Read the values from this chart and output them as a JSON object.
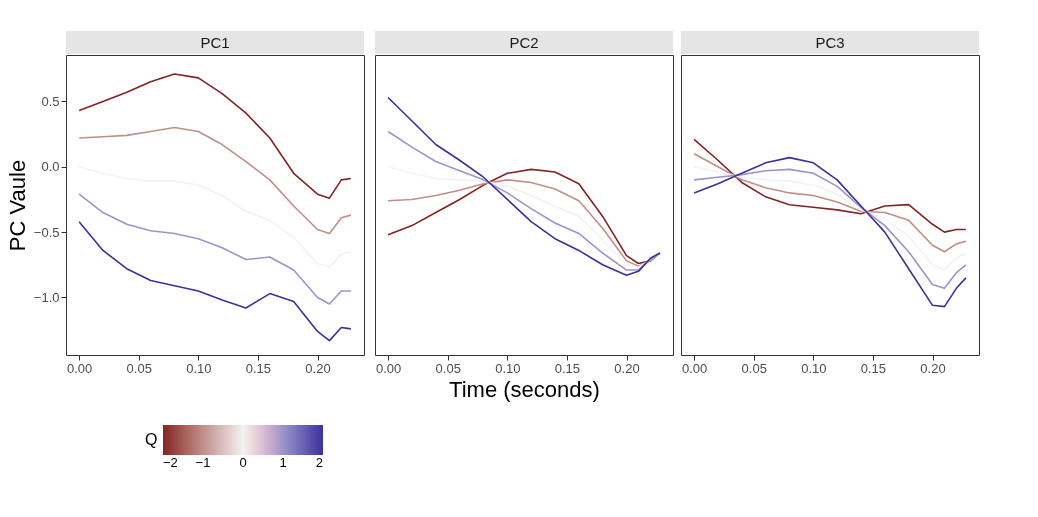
{
  "chart_data": [
    {
      "type": "line",
      "title": "PC1",
      "ylabel": "PC Vaule",
      "x": [
        0,
        0.02,
        0.04,
        0.06,
        0.08,
        0.1,
        0.12,
        0.14,
        0.16,
        0.18,
        0.2,
        0.21,
        0.22,
        0.228
      ],
      "series": [
        {
          "color": "#832424",
          "values": [
            0.43,
            0.5,
            0.57,
            0.65,
            0.71,
            0.68,
            0.56,
            0.41,
            0.22,
            -0.05,
            -0.21,
            -0.24,
            -0.1,
            -0.09
          ]
        },
        {
          "color": "#c08f8a",
          "values": [
            0.22,
            0.23,
            0.24,
            0.27,
            0.3,
            0.27,
            0.17,
            0.04,
            -0.1,
            -0.3,
            -0.48,
            -0.51,
            -0.39,
            -0.37
          ]
        },
        {
          "color": "#f4f2f2",
          "values": [
            0,
            -0.05,
            -0.09,
            -0.11,
            -0.11,
            -0.14,
            -0.22,
            -0.34,
            -0.41,
            -0.54,
            -0.74,
            -0.77,
            -0.67,
            -0.65
          ]
        },
        {
          "color": "#9a95cc",
          "values": [
            -0.21,
            -0.35,
            -0.44,
            -0.49,
            -0.51,
            -0.55,
            -0.62,
            -0.71,
            -0.69,
            -0.79,
            -1.0,
            -1.05,
            -0.95,
            -0.95
          ]
        },
        {
          "color": "#3b319a",
          "values": [
            -0.42,
            -0.64,
            -0.78,
            -0.87,
            -0.91,
            -0.95,
            -1.02,
            -1.08,
            -0.97,
            -1.03,
            -1.26,
            -1.33,
            -1.23,
            -1.24
          ]
        }
      ],
      "xlim": [
        -0.011,
        0.239
      ],
      "ylim": [
        -1.44,
        0.855
      ],
      "xticks": [
        {
          "value": 0,
          "label": "0.00"
        },
        {
          "value": 0.05,
          "label": "0.05"
        },
        {
          "value": 0.1,
          "label": "0.10"
        },
        {
          "value": 0.15,
          "label": "0.15"
        },
        {
          "value": 0.2,
          "label": "0.20"
        }
      ],
      "yticks": [
        {
          "value": -1,
          "label": "−1.0"
        },
        {
          "value": -0.5,
          "label": "−0.5"
        },
        {
          "value": 0,
          "label": "0.0"
        },
        {
          "value": 0.5,
          "label": "0.5"
        }
      ],
      "grid": false
    },
    {
      "type": "line",
      "title": "PC2",
      "xlabel": "Time (seconds)",
      "x": [
        0,
        0.02,
        0.04,
        0.06,
        0.08,
        0.1,
        0.12,
        0.14,
        0.16,
        0.18,
        0.2,
        0.21,
        0.22,
        0.228
      ],
      "series": [
        {
          "color": "#832424",
          "values": [
            -0.52,
            -0.45,
            -0.35,
            -0.25,
            -0.14,
            -0.05,
            -0.02,
            -0.04,
            -0.13,
            -0.38,
            -0.68,
            -0.74,
            -0.72,
            -0.66
          ]
        },
        {
          "color": "#c08f8a",
          "values": [
            -0.26,
            -0.25,
            -0.22,
            -0.18,
            -0.13,
            -0.1,
            -0.12,
            -0.17,
            -0.26,
            -0.47,
            -0.72,
            -0.76,
            -0.72,
            -0.66
          ]
        },
        {
          "color": "#f4f2f2",
          "values": [
            0,
            -0.05,
            -0.09,
            -0.1,
            -0.11,
            -0.15,
            -0.22,
            -0.3,
            -0.38,
            -0.56,
            -0.75,
            -0.77,
            -0.71,
            -0.66
          ]
        },
        {
          "color": "#9a95cc",
          "values": [
            0.27,
            0.15,
            0.04,
            -0.03,
            -0.1,
            -0.2,
            -0.32,
            -0.43,
            -0.51,
            -0.66,
            -0.79,
            -0.79,
            -0.71,
            -0.66
          ]
        },
        {
          "color": "#3b319a",
          "values": [
            0.53,
            0.35,
            0.17,
            0.05,
            -0.08,
            -0.25,
            -0.42,
            -0.55,
            -0.64,
            -0.75,
            -0.83,
            -0.8,
            -0.7,
            -0.66
          ]
        }
      ],
      "xlim": [
        -0.011,
        0.239
      ],
      "ylim": [
        -1.44,
        0.855
      ],
      "xticks": [
        {
          "value": 0,
          "label": "0.00"
        },
        {
          "value": 0.05,
          "label": "0.05"
        },
        {
          "value": 0.1,
          "label": "0.10"
        },
        {
          "value": 0.15,
          "label": "0.15"
        },
        {
          "value": 0.2,
          "label": "0.20"
        }
      ],
      "tick_labels": "x",
      "grid": false,
      "clabel": "Q",
      "clim": [
        -2,
        2
      ],
      "cticks": [
        {
          "value": -2,
          "label": "−2"
        },
        {
          "value": -1,
          "label": "−1"
        },
        {
          "value": 0,
          "label": "0"
        },
        {
          "value": 1,
          "label": "1"
        },
        {
          "value": 2,
          "label": "2"
        }
      ]
    },
    {
      "type": "line",
      "title": "PC3",
      "x": [
        0,
        0.02,
        0.04,
        0.06,
        0.08,
        0.1,
        0.12,
        0.14,
        0.16,
        0.18,
        0.2,
        0.21,
        0.22,
        0.228
      ],
      "series": [
        {
          "color": "#832424",
          "values": [
            0.21,
            0.05,
            -0.12,
            -0.23,
            -0.29,
            -0.31,
            -0.33,
            -0.36,
            -0.3,
            -0.29,
            -0.44,
            -0.5,
            -0.48,
            -0.48
          ]
        },
        {
          "color": "#c08f8a",
          "values": [
            0.1,
            0.0,
            -0.1,
            -0.16,
            -0.2,
            -0.22,
            -0.27,
            -0.34,
            -0.35,
            -0.41,
            -0.6,
            -0.65,
            -0.59,
            -0.57
          ]
        },
        {
          "color": "#f4f2f2",
          "values": [
            0,
            -0.04,
            -0.08,
            -0.1,
            -0.11,
            -0.14,
            -0.21,
            -0.33,
            -0.4,
            -0.53,
            -0.75,
            -0.79,
            -0.7,
            -0.66
          ]
        },
        {
          "color": "#9a95cc",
          "values": [
            -0.1,
            -0.08,
            -0.06,
            -0.03,
            -0.02,
            -0.05,
            -0.15,
            -0.31,
            -0.45,
            -0.65,
            -0.9,
            -0.93,
            -0.81,
            -0.75
          ]
        },
        {
          "color": "#3b319a",
          "values": [
            -0.2,
            -0.13,
            -0.05,
            0.03,
            0.07,
            0.03,
            -0.1,
            -0.3,
            -0.5,
            -0.78,
            -1.06,
            -1.07,
            -0.93,
            -0.85
          ]
        }
      ],
      "xlim": [
        -0.011,
        0.239
      ],
      "ylim": [
        -1.44,
        0.855
      ],
      "xticks": [
        {
          "value": 0,
          "label": "0.00"
        },
        {
          "value": 0.05,
          "label": "0.05"
        },
        {
          "value": 0.1,
          "label": "0.10"
        },
        {
          "value": 0.15,
          "label": "0.15"
        },
        {
          "value": 0.2,
          "label": "0.20"
        }
      ],
      "tick_labels": "x",
      "grid": false
    }
  ]
}
